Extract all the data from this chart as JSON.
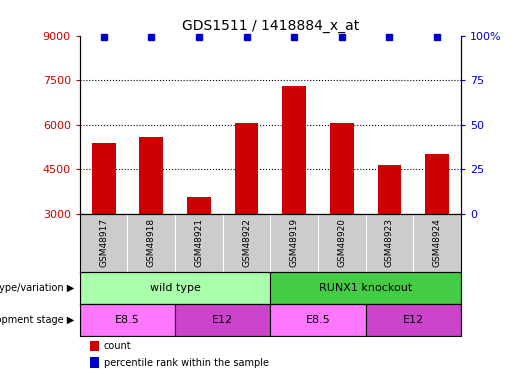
{
  "title": "GDS1511 / 1418884_x_at",
  "samples": [
    "GSM48917",
    "GSM48918",
    "GSM48921",
    "GSM48922",
    "GSM48919",
    "GSM48920",
    "GSM48923",
    "GSM48924"
  ],
  "counts": [
    5400,
    5600,
    3550,
    6050,
    7300,
    6050,
    4650,
    5000
  ],
  "percentile": [
    99,
    99,
    99,
    99,
    99,
    99,
    99,
    99
  ],
  "ylim_left": [
    3000,
    9000
  ],
  "ylim_right": [
    0,
    100
  ],
  "yticks_left": [
    3000,
    4500,
    6000,
    7500,
    9000
  ],
  "yticks_right": [
    0,
    25,
    50,
    75,
    100
  ],
  "bar_color": "#cc0000",
  "dot_color": "#0000cc",
  "genotype_groups": [
    {
      "label": "wild type",
      "start": 0,
      "end": 4,
      "color": "#aaffaa"
    },
    {
      "label": "RUNX1 knockout",
      "start": 4,
      "end": 8,
      "color": "#44cc44"
    }
  ],
  "dev_stage_groups": [
    {
      "label": "E8.5",
      "start": 0,
      "end": 2,
      "color": "#ff77ff"
    },
    {
      "label": "E12",
      "start": 2,
      "end": 4,
      "color": "#cc44cc"
    },
    {
      "label": "E8.5",
      "start": 4,
      "end": 6,
      "color": "#ff77ff"
    },
    {
      "label": "E12",
      "start": 6,
      "end": 8,
      "color": "#cc44cc"
    }
  ],
  "label_genotype": "genotype/variation",
  "label_devstage": "development stage",
  "legend_count": "count",
  "legend_percentile": "percentile rank within the sample",
  "left_tick_color": "#cc0000",
  "right_tick_color": "#0000cc",
  "bar_width": 0.5,
  "sample_box_color": "#cccccc"
}
